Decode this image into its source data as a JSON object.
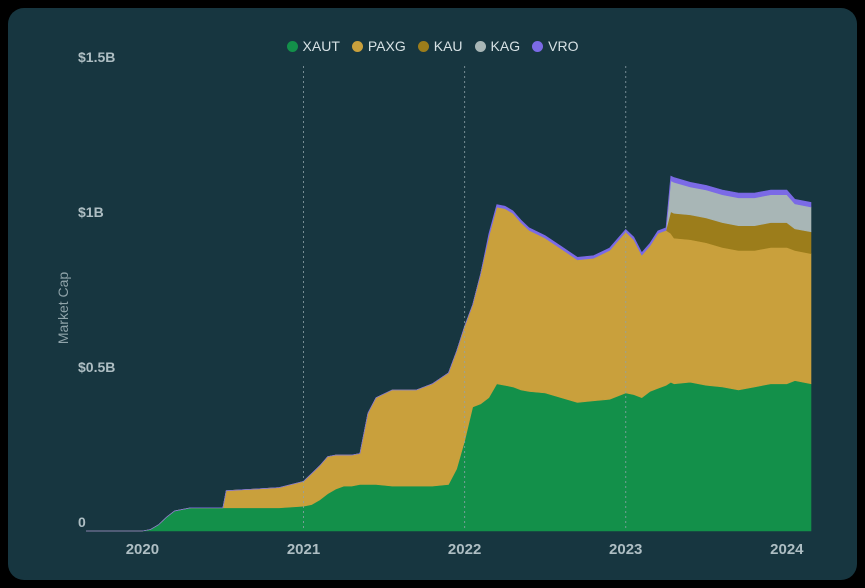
{
  "chart_data": {
    "type": "area",
    "stacked": true,
    "ylabel": "Market Cap",
    "y_ticks": [
      "0",
      "$0.5B",
      "$1B",
      "$1.5B"
    ],
    "y_tick_values": [
      0,
      0.5,
      1.0,
      1.5
    ],
    "ylim": [
      0,
      1.5
    ],
    "x_ticks": [
      "2020",
      "2021",
      "2022",
      "2023",
      "2024"
    ],
    "x_tick_values": [
      2020.0,
      2021.0,
      2022.0,
      2023.0,
      2024.0
    ],
    "xlim": [
      2019.65,
      2024.15
    ],
    "gridlines_x": [
      2021.0,
      2022.0,
      2023.0
    ],
    "legend_position": "top-center",
    "x": [
      2019.65,
      2019.85,
      2020.0,
      2020.05,
      2020.1,
      2020.15,
      2020.2,
      2020.3,
      2020.5,
      2020.52,
      2020.7,
      2020.85,
      2021.0,
      2021.05,
      2021.1,
      2021.15,
      2021.2,
      2021.25,
      2021.3,
      2021.35,
      2021.4,
      2021.45,
      2021.55,
      2021.7,
      2021.8,
      2021.9,
      2021.95,
      2022.0,
      2022.05,
      2022.1,
      2022.15,
      2022.2,
      2022.25,
      2022.3,
      2022.35,
      2022.4,
      2022.5,
      2022.6,
      2022.7,
      2022.8,
      2022.9,
      2023.0,
      2023.05,
      2023.1,
      2023.15,
      2023.2,
      2023.25,
      2023.28,
      2023.3,
      2023.4,
      2023.5,
      2023.6,
      2023.7,
      2023.8,
      2023.9,
      2024.0,
      2024.05,
      2024.15
    ],
    "series": [
      {
        "name": "XAUT",
        "color": "#13904a",
        "values": [
          0,
          0,
          0,
          0.005,
          0.02,
          0.045,
          0.065,
          0.075,
          0.075,
          0.075,
          0.075,
          0.075,
          0.08,
          0.085,
          0.1,
          0.12,
          0.135,
          0.145,
          0.145,
          0.15,
          0.15,
          0.15,
          0.145,
          0.145,
          0.145,
          0.15,
          0.2,
          0.29,
          0.4,
          0.41,
          0.43,
          0.475,
          0.47,
          0.465,
          0.455,
          0.45,
          0.445,
          0.43,
          0.415,
          0.42,
          0.425,
          0.445,
          0.44,
          0.43,
          0.45,
          0.46,
          0.47,
          0.48,
          0.475,
          0.48,
          0.47,
          0.465,
          0.455,
          0.465,
          0.475,
          0.475,
          0.485,
          0.475
        ]
      },
      {
        "name": "PAXG",
        "color": "#c9a03c",
        "values": [
          0,
          0,
          0,
          0,
          0,
          0,
          0,
          0,
          0,
          0.055,
          0.06,
          0.065,
          0.08,
          0.1,
          0.11,
          0.12,
          0.11,
          0.1,
          0.1,
          0.1,
          0.23,
          0.28,
          0.31,
          0.31,
          0.33,
          0.36,
          0.38,
          0.37,
          0.33,
          0.42,
          0.52,
          0.57,
          0.57,
          0.56,
          0.54,
          0.52,
          0.5,
          0.48,
          0.46,
          0.46,
          0.48,
          0.52,
          0.5,
          0.46,
          0.47,
          0.5,
          0.5,
          0.48,
          0.47,
          0.46,
          0.46,
          0.45,
          0.45,
          0.44,
          0.44,
          0.44,
          0.42,
          0.42
        ]
      },
      {
        "name": "KAU",
        "color": "#9c7d1b",
        "values": [
          0,
          0,
          0,
          0,
          0,
          0,
          0,
          0,
          0,
          0,
          0,
          0,
          0,
          0,
          0,
          0,
          0,
          0,
          0,
          0,
          0,
          0,
          0,
          0,
          0,
          0,
          0,
          0,
          0,
          0,
          0,
          0,
          0,
          0,
          0,
          0,
          0,
          0,
          0,
          0,
          0,
          0,
          0,
          0,
          0,
          0,
          0,
          0.07,
          0.08,
          0.08,
          0.08,
          0.08,
          0.08,
          0.08,
          0.08,
          0.08,
          0.07,
          0.07
        ]
      },
      {
        "name": "KAG",
        "color": "#a8b6b6",
        "values": [
          0,
          0,
          0,
          0,
          0,
          0,
          0,
          0,
          0,
          0,
          0,
          0,
          0,
          0,
          0,
          0,
          0,
          0,
          0,
          0,
          0,
          0,
          0,
          0,
          0,
          0,
          0,
          0,
          0,
          0,
          0,
          0,
          0,
          0,
          0,
          0,
          0,
          0,
          0,
          0,
          0,
          0,
          0,
          0,
          0,
          0,
          0,
          0.1,
          0.1,
          0.09,
          0.09,
          0.09,
          0.09,
          0.09,
          0.09,
          0.09,
          0.08,
          0.08
        ]
      },
      {
        "name": "VRO",
        "color": "#7b6ae6",
        "values": [
          0,
          0,
          0,
          0,
          0,
          0,
          0,
          0,
          0,
          0,
          0,
          0,
          0,
          0,
          0,
          0,
          0,
          0,
          0,
          0,
          0,
          0,
          0,
          0,
          0,
          0,
          0,
          0,
          0,
          0,
          0.008,
          0.008,
          0.008,
          0.008,
          0.008,
          0.008,
          0.008,
          0.008,
          0.008,
          0.008,
          0.008,
          0.008,
          0.008,
          0.008,
          0.008,
          0.008,
          0.008,
          0.015,
          0.015,
          0.015,
          0.015,
          0.015,
          0.015,
          0.015,
          0.015,
          0.015,
          0.015,
          0.015
        ]
      }
    ]
  }
}
